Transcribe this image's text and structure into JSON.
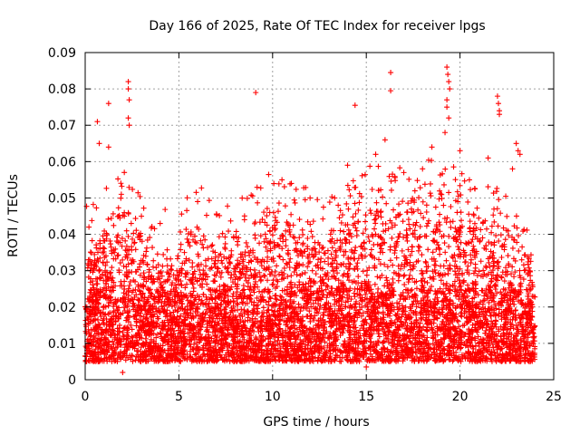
{
  "chart_data": {
    "type": "scatter",
    "title": "Day 166 of 2025, Rate Of TEC Index for receiver lpgs",
    "xlabel": "GPS time / hours",
    "ylabel": "ROTI / TECUs",
    "xlim": [
      0,
      25
    ],
    "ylim": [
      0,
      0.09
    ],
    "xticks": [
      0,
      5,
      10,
      15,
      20,
      25
    ],
    "yticks": [
      0,
      0.01,
      0.02,
      0.03,
      0.04,
      0.05,
      0.06,
      0.07,
      0.08,
      0.09
    ],
    "xtick_labels": [
      "0",
      "5",
      "10",
      "15",
      "20",
      "25"
    ],
    "ytick_labels": [
      "0",
      "0.01",
      "0.02",
      "0.03",
      "0.04",
      "0.05",
      "0.06",
      "0.07",
      "0.08",
      "0.09"
    ],
    "grid": true,
    "marker": "+",
    "marker_color": "#ff0000",
    "series": [
      {
        "x_range": [
          0,
          24
        ],
        "y_min": 0.002,
        "envelope": [
          [
            0,
            0.03
          ],
          [
            1,
            0.035
          ],
          [
            2,
            0.04
          ],
          [
            3,
            0.032
          ],
          [
            4,
            0.03
          ],
          [
            5,
            0.03
          ],
          [
            6,
            0.036
          ],
          [
            7,
            0.03
          ],
          [
            8,
            0.032
          ],
          [
            9,
            0.034
          ],
          [
            10,
            0.04
          ],
          [
            11,
            0.036
          ],
          [
            12,
            0.035
          ],
          [
            13,
            0.035
          ],
          [
            14,
            0.038
          ],
          [
            15,
            0.042
          ],
          [
            16,
            0.042
          ],
          [
            17,
            0.04
          ],
          [
            18,
            0.042
          ],
          [
            19,
            0.045
          ],
          [
            20,
            0.04
          ],
          [
            21,
            0.036
          ],
          [
            22,
            0.035
          ],
          [
            23,
            0.035
          ],
          [
            24,
            0.03
          ]
        ],
        "peaks": [
          [
            0.65,
            0.071
          ],
          [
            0.75,
            0.065
          ],
          [
            1.25,
            0.076
          ],
          [
            1.25,
            0.064
          ],
          [
            2.3,
            0.082
          ],
          [
            2.3,
            0.08
          ],
          [
            2.35,
            0.077
          ],
          [
            2.3,
            0.072
          ],
          [
            2.35,
            0.07
          ],
          [
            9.1,
            0.079
          ],
          [
            14.4,
            0.0755
          ],
          [
            16.3,
            0.0845
          ],
          [
            16.3,
            0.0795
          ],
          [
            19.3,
            0.086
          ],
          [
            19.35,
            0.084
          ],
          [
            19.4,
            0.082
          ],
          [
            19.45,
            0.08
          ],
          [
            19.3,
            0.077
          ],
          [
            19.3,
            0.075
          ],
          [
            19.4,
            0.072
          ],
          [
            19.2,
            0.068
          ],
          [
            22.0,
            0.078
          ],
          [
            22.05,
            0.076
          ],
          [
            22.1,
            0.074
          ],
          [
            22.1,
            0.073
          ],
          [
            23.0,
            0.065
          ],
          [
            23.1,
            0.063
          ],
          [
            23.2,
            0.062
          ],
          [
            22.8,
            0.058
          ],
          [
            10.5,
            0.055
          ],
          [
            6.0,
            0.049
          ],
          [
            4.0,
            0.043
          ],
          [
            11.0,
            0.054
          ],
          [
            15.5,
            0.062
          ],
          [
            16.0,
            0.066
          ],
          [
            18.5,
            0.064
          ],
          [
            20.0,
            0.063
          ],
          [
            17.0,
            0.057
          ],
          [
            14.0,
            0.059
          ],
          [
            21.5,
            0.061
          ],
          [
            12.0,
            0.05
          ],
          [
            13.5,
            0.048
          ],
          [
            3.0,
            0.045
          ],
          [
            8.5,
            0.044
          ],
          [
            0.2,
            0.042
          ],
          [
            20.5,
            0.055
          ],
          [
            18.0,
            0.058
          ],
          [
            15.0,
            0.0035
          ],
          [
            2.0,
            0.002
          ]
        ]
      }
    ]
  }
}
